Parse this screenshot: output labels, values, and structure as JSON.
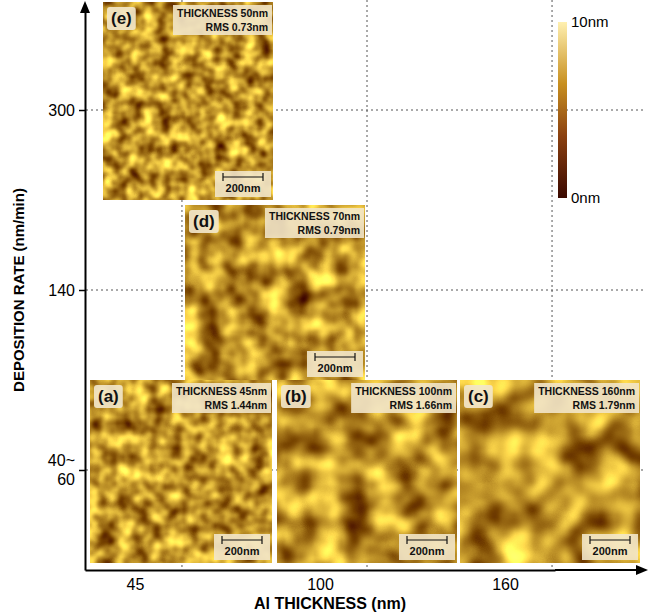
{
  "chart_data": {
    "type": "image_grid",
    "x_label": "Al THICKNESS (nm)",
    "y_label": "DEPOSITION RATE (nm/min)",
    "categories": [
      "45",
      "100",
      "160"
    ],
    "y_categories": [
      "40~60",
      "140",
      "300"
    ],
    "grid": true,
    "panels": [
      {
        "label": "(a)",
        "thickness": "THICKNESS 45nm",
        "rms": "RMS 1.44nm",
        "scale_bar": "200nm"
      },
      {
        "label": "(b)",
        "thickness": "THICKNESS 100nm",
        "rms": "RMS 1.66nm",
        "scale_bar": "200nm"
      },
      {
        "label": "(c)",
        "thickness": "THICKNESS 160nm",
        "rms": "RMS 1.79nm",
        "scale_bar": "200nm"
      },
      {
        "label": "(d)",
        "thickness": "THICKNESS 70nm",
        "rms": "RMS 0.79nm",
        "scale_bar": "200nm"
      },
      {
        "label": "(e)",
        "thickness": "THICKNESS 50nm",
        "rms": "RMS 0.73nm",
        "scale_bar": "200nm"
      }
    ],
    "colorbar": {
      "range": [
        0,
        10
      ],
      "ticks": [
        {
          "value": 0,
          "label": "0nm"
        },
        {
          "value": 10,
          "label": "10nm"
        }
      ]
    }
  }
}
